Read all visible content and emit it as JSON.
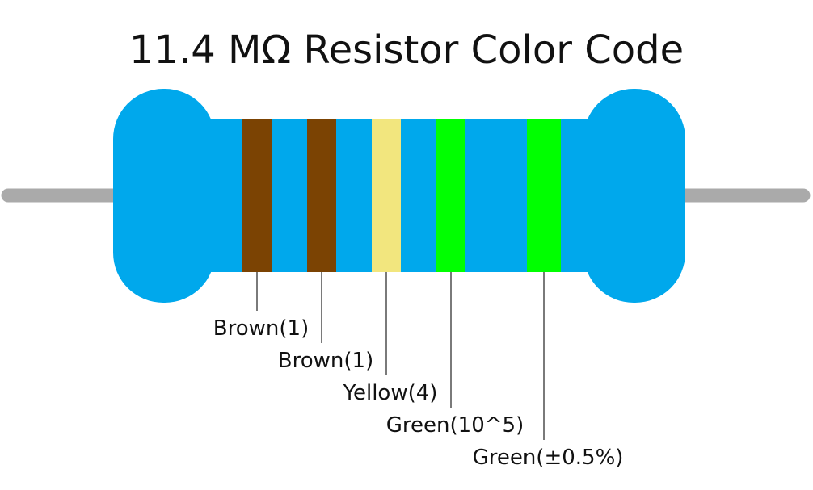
{
  "title": "11.4 MΩ Resistor Color Code",
  "bands": [
    {
      "label": "Brown(1)",
      "color": "#7b4303"
    },
    {
      "label": "Brown(1)",
      "color": "#7b4303"
    },
    {
      "label": "Yellow(4)",
      "color": "#f2e67e"
    },
    {
      "label": "Green(10^5)",
      "color": "#00ff00"
    },
    {
      "label": "Green(±0.5%)",
      "color": "#00ff00"
    }
  ]
}
